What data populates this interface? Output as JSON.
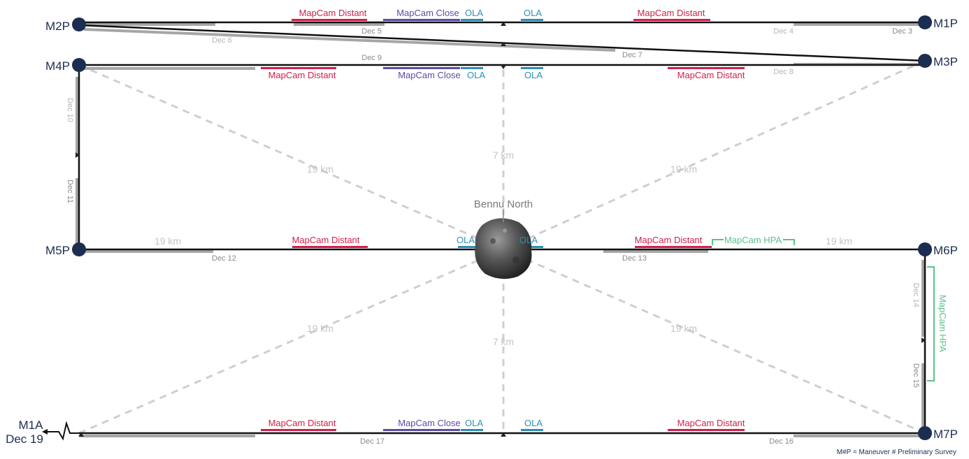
{
  "colors": {
    "node": "#1c2d52",
    "track": "#111111",
    "track_shadow": "#a6a6a6",
    "mapcam_distant": "#d0204c",
    "mapcam_close": "#5b4da3",
    "ola": "#2d8fb5",
    "mapcam_hpa": "#5ec08a",
    "dash": "#cfcfcf"
  },
  "icons": {
    "asteroid": "asteroid-bennu",
    "maneuver_node": "filled-circle",
    "exit_arrow": "lightning-arrow-icon"
  },
  "nodes": {
    "m1p": "M1P",
    "m2p": "M2P",
    "m3p": "M3P",
    "m4p": "M4P",
    "m5p": "M5P",
    "m6p": "M6P",
    "m7p": "M7P",
    "m1a": "M1A",
    "m1a_date": "Dec 19"
  },
  "dates": {
    "dec3": "Dec 3",
    "dec4": "Dec 4",
    "dec5": "Dec 5",
    "dec6": "Dec 6",
    "dec7": "Dec 7",
    "dec8": "Dec 8",
    "dec9": "Dec 9",
    "dec10": "Dec 10",
    "dec11": "Dec 11",
    "dec12": "Dec 12",
    "dec13": "Dec 13",
    "dec14": "Dec 14",
    "dec15": "Dec 15",
    "dec16": "Dec 16",
    "dec17": "Dec 17"
  },
  "distances": {
    "ul": "19 km",
    "ur": "19 km",
    "ll": "19 km",
    "lr": "19 km",
    "top": "7 km",
    "bottom": "7 km",
    "mid_left": "19 km",
    "mid_right": "19 km"
  },
  "target": {
    "label": "Bennu North"
  },
  "observations": {
    "mapcam_distant": "MapCam Distant",
    "mapcam_close": "MapCam Close",
    "ola": "OLA",
    "mapcam_hpa": "MapCam HPA"
  },
  "footnote": "M#P = Maneuver # Preliminary Survey"
}
